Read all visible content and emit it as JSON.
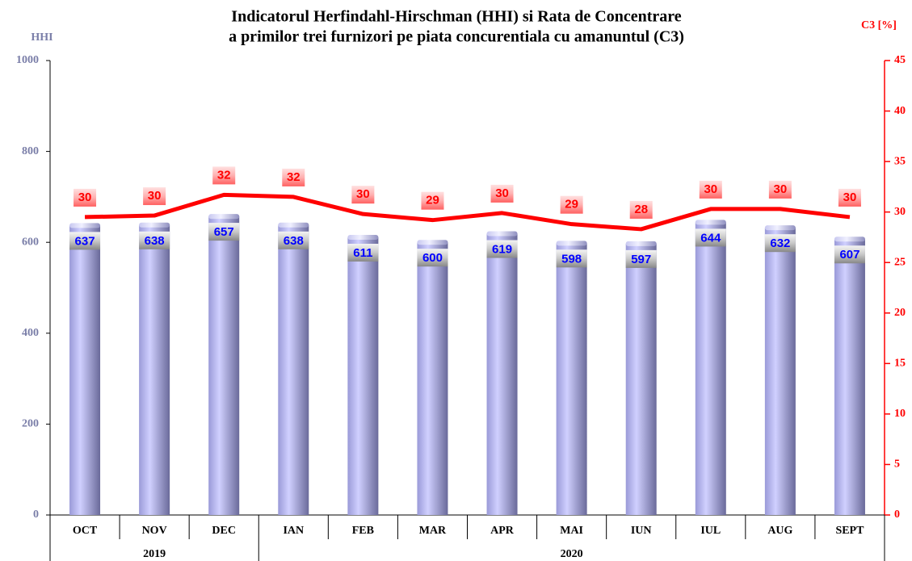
{
  "chart_data": {
    "type": "bar-line",
    "title": "Indicatorul Herfindahl-Hirschman (HHI) si Rata de Concentrare",
    "subtitle": "a primilor trei furnizori pe piata concurentiala cu amanuntul (C3)",
    "ylabel": "HHI",
    "y2label": "C3 [%]",
    "categories": [
      "OCT",
      "NOV",
      "DEC",
      "IAN",
      "FEB",
      "MAR",
      "APR",
      "MAI",
      "IUN",
      "IUL",
      "AUG",
      "SEPT"
    ],
    "groups": [
      {
        "label": "2019",
        "from": "OCT",
        "to": "DEC"
      },
      {
        "label": "2020",
        "from": "IAN",
        "to": "SEPT"
      }
    ],
    "series": [
      {
        "type": "bar",
        "color": "#b4b4f0",
        "values": [
          637,
          638,
          657,
          638,
          611,
          600,
          619,
          598,
          597,
          644,
          632,
          607
        ]
      },
      {
        "type": "line",
        "axis": "y2",
        "color": "#ff0000",
        "values": [
          29.5,
          29.65,
          31.7,
          31.5,
          29.8,
          29.2,
          29.9,
          28.8,
          28.3,
          30.3,
          30.3,
          29.5
        ],
        "value_labels": [
          "30",
          "30",
          "32",
          "32",
          "30",
          "29",
          "30",
          "29",
          "28",
          "30",
          "30",
          "30"
        ]
      }
    ],
    "ylim": [
      0,
      1000
    ],
    "yticks": [
      0,
      200,
      400,
      600,
      800,
      1000
    ],
    "y2lim": [
      0,
      45
    ],
    "y2ticks": [
      0,
      5,
      10,
      15,
      20,
      25,
      30,
      35,
      40,
      45
    ],
    "grid": false
  }
}
